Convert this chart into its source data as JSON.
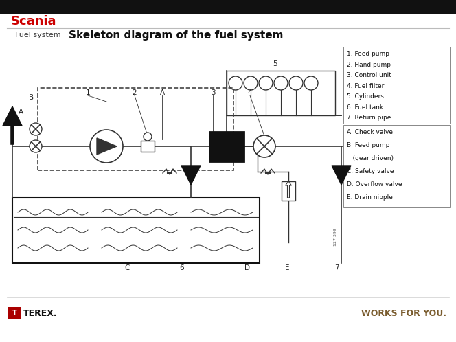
{
  "title_brand": "Scania",
  "title_brand_color": "#cc0000",
  "subtitle_left": "Fuel system",
  "subtitle_main": "Skeleton diagram of the fuel system",
  "bg_color": "#ffffff",
  "slide_bg": "#f0f0f0",
  "legend1": [
    "1. Feed pump",
    "2. Hand pump",
    "3. Control unit",
    "4. Fuel filter",
    "5. Cylinders",
    "6. Fuel tank",
    "7. Return pipe"
  ],
  "legend2_items": [
    "A. Check valve",
    "B. Feed pump",
    "   (gear driven)",
    "C. Safety valve",
    "D. Overflow valve",
    "E. Drain nipple"
  ],
  "footer_right": "WORKS FOR YOU.",
  "footer_color": "#7a5c2e",
  "terex_box_color": "#aa0000",
  "line_color": "#333333",
  "black": "#000000"
}
